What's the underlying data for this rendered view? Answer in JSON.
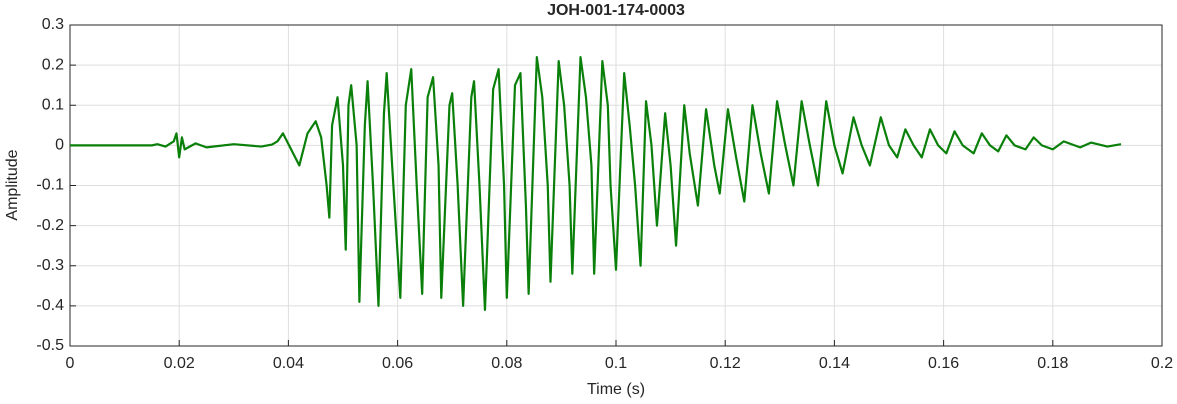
{
  "chart_data": {
    "type": "line",
    "title": "JOH-001-174-0003",
    "xlabel": "Time (s)",
    "ylabel": "Amplitude",
    "x": [
      0,
      0.015,
      0.016,
      0.0175,
      0.019,
      0.0195,
      0.02,
      0.0205,
      0.021,
      0.023,
      0.025,
      0.03,
      0.035,
      0.037,
      0.038,
      0.039,
      0.0405,
      0.042,
      0.0435,
      0.045,
      0.046,
      0.047,
      0.0475,
      0.048,
      0.049,
      0.05,
      0.0505,
      0.051,
      0.0515,
      0.0525,
      0.053,
      0.054,
      0.0545,
      0.0555,
      0.0565,
      0.0575,
      0.058,
      0.059,
      0.0605,
      0.0615,
      0.0625,
      0.0635,
      0.0645,
      0.0655,
      0.0665,
      0.0675,
      0.068,
      0.0695,
      0.07,
      0.071,
      0.072,
      0.0735,
      0.074,
      0.075,
      0.076,
      0.0775,
      0.0785,
      0.0795,
      0.08,
      0.0815,
      0.0825,
      0.0835,
      0.084,
      0.0855,
      0.0865,
      0.0875,
      0.088,
      0.0895,
      0.0905,
      0.0915,
      0.092,
      0.0935,
      0.0945,
      0.0955,
      0.096,
      0.0975,
      0.0985,
      0.099,
      0.1,
      0.1015,
      0.1025,
      0.1035,
      0.1045,
      0.1055,
      0.1065,
      0.1075,
      0.109,
      0.11,
      0.111,
      0.1125,
      0.1135,
      0.115,
      0.1165,
      0.118,
      0.119,
      0.1205,
      0.122,
      0.1235,
      0.125,
      0.1265,
      0.128,
      0.1295,
      0.131,
      0.1325,
      0.134,
      0.1355,
      0.137,
      0.1385,
      0.14,
      0.1415,
      0.1435,
      0.145,
      0.1465,
      0.1485,
      0.15,
      0.1515,
      0.153,
      0.1545,
      0.156,
      0.1575,
      0.159,
      0.1605,
      0.162,
      0.1635,
      0.1655,
      0.167,
      0.1685,
      0.17,
      0.1715,
      0.173,
      0.175,
      0.1765,
      0.178,
      0.18,
      0.182,
      0.185,
      0.187,
      0.19,
      0.1925
    ],
    "values": [
      0,
      0,
      0.003,
      -0.003,
      0.01,
      0.03,
      -0.03,
      0.02,
      -0.01,
      0.005,
      -0.005,
      0.003,
      -0.003,
      0.002,
      0.01,
      0.03,
      -0.01,
      -0.05,
      0.03,
      0.06,
      0.02,
      -0.1,
      -0.18,
      0.05,
      0.12,
      -0.05,
      -0.26,
      0.1,
      0.15,
      0,
      -0.39,
      0.05,
      0.16,
      -0.1,
      -0.4,
      0.08,
      0.18,
      -0.05,
      -0.38,
      0.1,
      0.19,
      -0.1,
      -0.37,
      0.12,
      0.17,
      -0.05,
      -0.38,
      0.1,
      0.13,
      -0.1,
      -0.4,
      0.12,
      0.16,
      -0.1,
      -0.41,
      0.14,
      0.19,
      -0.1,
      -0.38,
      0.15,
      0.18,
      -0.15,
      -0.37,
      0.22,
      0.12,
      -0.1,
      -0.34,
      0.21,
      0.1,
      -0.1,
      -0.32,
      0.22,
      0.12,
      -0.05,
      -0.32,
      0.21,
      0.1,
      -0.1,
      -0.31,
      0.18,
      0.05,
      -0.1,
      -0.3,
      0.11,
      0,
      -0.2,
      0.08,
      -0.05,
      -0.25,
      0.1,
      -0.02,
      -0.15,
      0.09,
      -0.05,
      -0.12,
      0.09,
      -0.03,
      -0.14,
      0.1,
      -0.02,
      -0.12,
      0.11,
      0,
      -0.1,
      0.11,
      0,
      -0.1,
      0.11,
      0,
      -0.07,
      0.07,
      0,
      -0.05,
      0.07,
      0,
      -0.03,
      0.04,
      0,
      -0.03,
      0.04,
      0,
      -0.02,
      0.035,
      0,
      -0.02,
      0.03,
      0,
      -0.015,
      0.025,
      0,
      -0.01,
      0.02,
      0,
      -0.01,
      0.01,
      -0.005,
      0.007,
      -0.003,
      0.003
    ],
    "color": "#0a800a",
    "xlim": [
      0,
      0.2
    ],
    "xticks": [
      0,
      0.02,
      0.04,
      0.06,
      0.08,
      0.1,
      0.12,
      0.14,
      0.16,
      0.18,
      0.2
    ],
    "ylim": [
      -0.5,
      0.3
    ],
    "yticks": [
      -0.5,
      -0.4,
      -0.3,
      -0.2,
      -0.1,
      0,
      0.1,
      0.2,
      0.3
    ],
    "grid": true
  }
}
